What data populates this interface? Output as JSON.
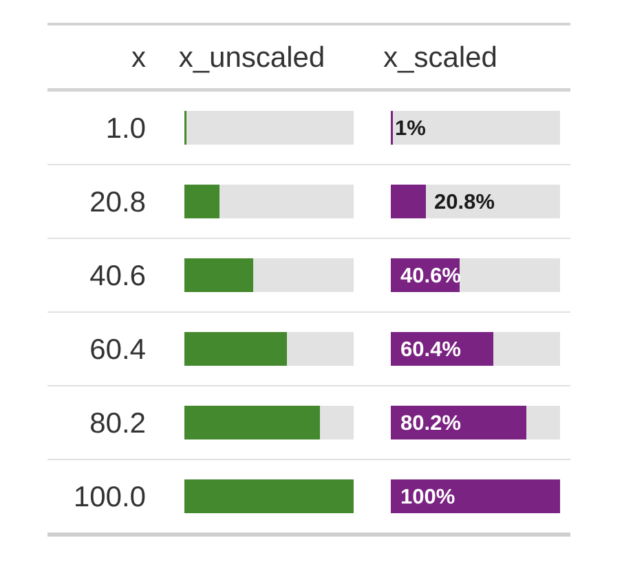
{
  "table": {
    "columns": [
      "x",
      "x_unscaled",
      "x_scaled"
    ],
    "rows": [
      {
        "x": "1.0",
        "pct": 1,
        "bar_label": "1%",
        "label_inside": false
      },
      {
        "x": "20.8",
        "pct": 20.8,
        "bar_label": "20.8%",
        "label_inside": false
      },
      {
        "x": "40.6",
        "pct": 40.6,
        "bar_label": "40.6%",
        "label_inside": true
      },
      {
        "x": "60.4",
        "pct": 60.4,
        "bar_label": "60.4%",
        "label_inside": true
      },
      {
        "x": "80.2",
        "pct": 80.2,
        "bar_label": "80.2%",
        "label_inside": true
      },
      {
        "x": "100.0",
        "pct": 100,
        "bar_label": "100%",
        "label_inside": true
      }
    ]
  },
  "colors": {
    "green": "#44892d",
    "purple": "#7a2382",
    "track": "#e2e2e2",
    "text": "#333333",
    "label_outside": "#1a1a1a",
    "label_inside": "#ffffff",
    "border": "#d3d3d3",
    "row_divider": "#e1e1e1",
    "bottom_border": "#cfcfcf"
  },
  "chart_data": {
    "type": "table",
    "columns": [
      "x",
      "x_unscaled",
      "x_scaled"
    ],
    "rows": [
      {
        "x": 1.0,
        "x_unscaled_bar_pct": 1.0,
        "x_scaled_bar_pct": 1.0,
        "x_scaled_label": "1%"
      },
      {
        "x": 20.8,
        "x_unscaled_bar_pct": 20.8,
        "x_scaled_bar_pct": 20.8,
        "x_scaled_label": "20.8%"
      },
      {
        "x": 40.6,
        "x_unscaled_bar_pct": 40.6,
        "x_scaled_bar_pct": 40.6,
        "x_scaled_label": "40.6%"
      },
      {
        "x": 60.4,
        "x_unscaled_bar_pct": 60.4,
        "x_scaled_bar_pct": 60.4,
        "x_scaled_label": "60.4%"
      },
      {
        "x": 80.2,
        "x_unscaled_bar_pct": 80.2,
        "x_scaled_bar_pct": 80.2,
        "x_scaled_label": "80.2%"
      },
      {
        "x": 100.0,
        "x_unscaled_bar_pct": 100.0,
        "x_scaled_bar_pct": 100.0,
        "x_scaled_label": "100%"
      }
    ],
    "bar_range": [
      0,
      100
    ],
    "bar_colors": {
      "x_unscaled": "#44892d",
      "x_scaled": "#7a2382"
    },
    "bar_track_color": "#e2e2e2",
    "notes": "x_unscaled: unlabeled green bar; x_scaled: purple bar with percent label (black outside bar for small values, white inside bar for large values)"
  }
}
